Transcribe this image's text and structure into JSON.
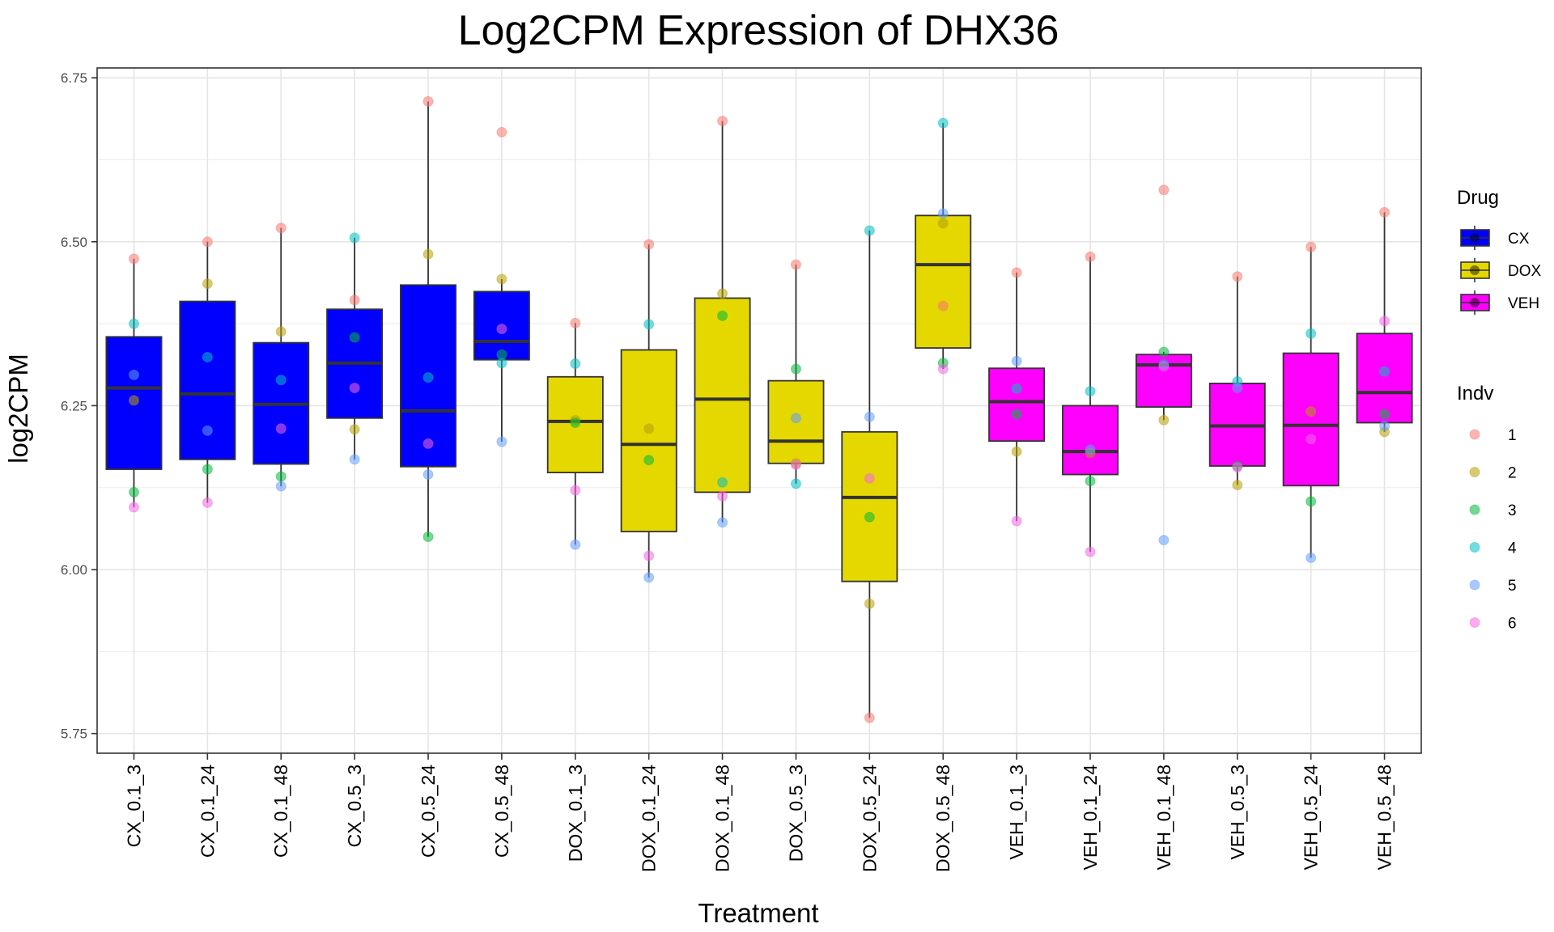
{
  "chart_data": {
    "type": "boxplot",
    "title": "Log2CPM Expression of DHX36",
    "xlabel": "Treatment",
    "ylabel": "log2CPM",
    "ylim": [
      5.72,
      6.765
    ],
    "yticks": [
      5.75,
      6.0,
      6.25,
      6.5,
      6.75
    ],
    "ytick_labels": [
      "5.75",
      "6.00",
      "6.25",
      "6.50",
      "6.75"
    ],
    "grid": true,
    "categories": [
      "CX_0.1_3",
      "CX_0.1_24",
      "CX_0.1_48",
      "CX_0.5_3",
      "CX_0.5_24",
      "CX_0.5_48",
      "DOX_0.1_3",
      "DOX_0.1_24",
      "DOX_0.1_48",
      "DOX_0.5_3",
      "DOX_0.5_24",
      "DOX_0.5_48",
      "VEH_0.1_3",
      "VEH_0.1_24",
      "VEH_0.1_48",
      "VEH_0.5_3",
      "VEH_0.5_24",
      "VEH_0.5_48"
    ],
    "drug": [
      "CX",
      "CX",
      "CX",
      "CX",
      "CX",
      "CX",
      "DOX",
      "DOX",
      "DOX",
      "DOX",
      "DOX",
      "DOX",
      "VEH",
      "VEH",
      "VEH",
      "VEH",
      "VEH",
      "VEH"
    ],
    "drug_colors": {
      "CX": "#0000FF",
      "DOX": "#E5D800",
      "VEH": "#FF00FF"
    },
    "indv_colors": {
      "1": "#F8766D",
      "2": "#B79F00",
      "3": "#00BA38",
      "4": "#00BFC4",
      "5": "#619CFF",
      "6": "#F564E3"
    },
    "boxes": [
      {
        "q1": 6.153,
        "median": 6.277,
        "q3": 6.355,
        "whisker_low": 6.095,
        "whisker_high": 6.474
      },
      {
        "q1": 6.168,
        "median": 6.268,
        "q3": 6.409,
        "whisker_low": 6.102,
        "whisker_high": 6.5
      },
      {
        "q1": 6.161,
        "median": 6.252,
        "q3": 6.346,
        "whisker_low": 6.127,
        "whisker_high": 6.521
      },
      {
        "q1": 6.231,
        "median": 6.315,
        "q3": 6.397,
        "whisker_low": 6.168,
        "whisker_high": 6.506
      },
      {
        "q1": 6.157,
        "median": 6.242,
        "q3": 6.434,
        "whisker_low": 6.05,
        "whisker_high": 6.714
      },
      {
        "q1": 6.32,
        "median": 6.348,
        "q3": 6.424,
        "whisker_low": 6.195,
        "whisker_high": 6.443
      },
      {
        "q1": 6.148,
        "median": 6.226,
        "q3": 6.294,
        "whisker_low": 6.038,
        "whisker_high": 6.376
      },
      {
        "q1": 6.058,
        "median": 6.191,
        "q3": 6.335,
        "whisker_low": 5.988,
        "whisker_high": 6.496
      },
      {
        "q1": 6.118,
        "median": 6.26,
        "q3": 6.414,
        "whisker_low": 6.072,
        "whisker_high": 6.684
      },
      {
        "q1": 6.162,
        "median": 6.196,
        "q3": 6.288,
        "whisker_low": 6.131,
        "whisker_high": 6.465
      },
      {
        "q1": 5.982,
        "median": 6.11,
        "q3": 6.21,
        "whisker_low": 5.774,
        "whisker_high": 6.517
      },
      {
        "q1": 6.338,
        "median": 6.465,
        "q3": 6.54,
        "whisker_low": 6.306,
        "whisker_high": 6.681
      },
      {
        "q1": 6.196,
        "median": 6.256,
        "q3": 6.307,
        "whisker_low": 6.074,
        "whisker_high": 6.453
      },
      {
        "q1": 6.145,
        "median": 6.18,
        "q3": 6.25,
        "whisker_low": 6.027,
        "whisker_high": 6.477
      },
      {
        "q1": 6.248,
        "median": 6.312,
        "q3": 6.328,
        "whisker_low": 6.228,
        "whisker_high": 6.332
      },
      {
        "q1": 6.158,
        "median": 6.219,
        "q3": 6.284,
        "whisker_low": 6.129,
        "whisker_high": 6.447
      },
      {
        "q1": 6.128,
        "median": 6.22,
        "q3": 6.33,
        "whisker_low": 6.018,
        "whisker_high": 6.492
      },
      {
        "q1": 6.224,
        "median": 6.27,
        "q3": 6.36,
        "whisker_low": 6.21,
        "whisker_high": 6.545
      }
    ],
    "points": [
      {
        "1": 6.474,
        "2": 6.258,
        "3": 6.118,
        "4": 6.375,
        "5": 6.297,
        "6": 6.095
      },
      {
        "1": 6.5,
        "2": 6.436,
        "3": 6.153,
        "4": 6.324,
        "5": 6.212,
        "6": 6.102
      },
      {
        "1": 6.521,
        "2": 6.363,
        "3": 6.142,
        "4": 6.289,
        "5": 6.127,
        "6": 6.215
      },
      {
        "1": 6.411,
        "2": 6.214,
        "3": 6.354,
        "4": 6.506,
        "5": 6.168,
        "6": 6.277
      },
      {
        "1": 6.714,
        "2": 6.481,
        "3": 6.05,
        "4": 6.293,
        "5": 6.145,
        "6": 6.192
      },
      {
        "1": 6.667,
        "2": 6.443,
        "3": 6.328,
        "4": 6.315,
        "5": 6.195,
        "6": 6.367
      },
      {
        "1": 6.376,
        "2": 6.228,
        "3": 6.224,
        "4": 6.314,
        "5": 6.038,
        "6": 6.121
      },
      {
        "1": 6.496,
        "2": 6.215,
        "3": 6.167,
        "4": 6.374,
        "5": 5.988,
        "6": 6.021
      },
      {
        "1": 6.684,
        "2": 6.421,
        "3": 6.387,
        "4": 6.133,
        "5": 6.072,
        "6": 6.112
      },
      {
        "1": 6.465,
        "2": 6.162,
        "3": 6.306,
        "4": 6.131,
        "5": 6.231,
        "6": 6.16
      },
      {
        "1": 5.774,
        "2": 5.948,
        "3": 6.08,
        "4": 6.517,
        "5": 6.233,
        "6": 6.139
      },
      {
        "1": 6.402,
        "2": 6.528,
        "3": 6.315,
        "4": 6.681,
        "5": 6.543,
        "6": 6.306
      },
      {
        "1": 6.453,
        "2": 6.18,
        "3": 6.237,
        "4": 6.276,
        "5": 6.318,
        "6": 6.074
      },
      {
        "1": 6.477,
        "2": 6.178,
        "3": 6.135,
        "4": 6.272,
        "5": 6.183,
        "6": 6.027
      },
      {
        "1": 6.579,
        "2": 6.228,
        "3": 6.332,
        "4": 6.313,
        "5": 6.045,
        "6": 6.31
      },
      {
        "1": 6.447,
        "2": 6.129,
        "3": 6.158,
        "4": 6.287,
        "5": 6.277,
        "6": 6.156
      },
      {
        "1": 6.492,
        "2": 6.241,
        "3": 6.104,
        "4": 6.36,
        "5": 6.018,
        "6": 6.199
      },
      {
        "1": 6.545,
        "2": 6.21,
        "3": 6.237,
        "4": 6.302,
        "5": 6.219,
        "6": 6.379
      }
    ],
    "legend": {
      "placement": "right",
      "drug_title": "Drug",
      "drug_items": [
        "CX",
        "DOX",
        "VEH"
      ],
      "indv_title": "Indv",
      "indv_items": [
        "1",
        "2",
        "3",
        "4",
        "5",
        "6"
      ]
    }
  }
}
